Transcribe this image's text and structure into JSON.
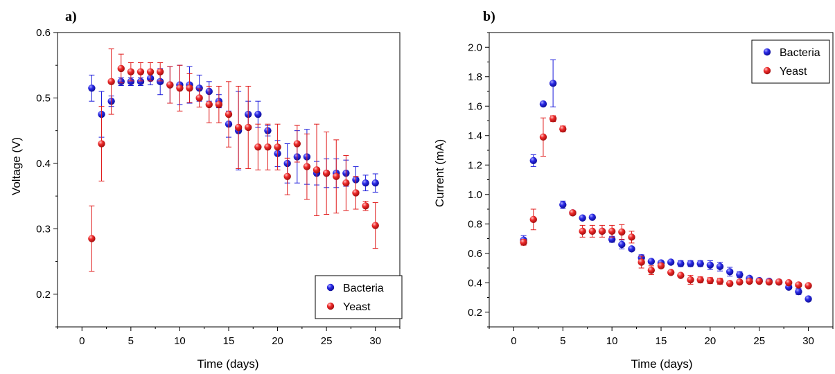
{
  "chart_data": [
    {
      "panel_label": "a)",
      "type": "scatter",
      "xlabel": "Time (days)",
      "ylabel": "Voltage (V)",
      "xlim": [
        -2.5,
        32.5
      ],
      "ylim": [
        0.15,
        0.6
      ],
      "xticks": [
        0,
        5,
        10,
        15,
        20,
        25,
        30
      ],
      "yticks": [
        0.2,
        0.3,
        0.4,
        0.5,
        0.6
      ],
      "ytick_decimals": 1,
      "grid": false,
      "legend_position": "bottom-right",
      "series": [
        {
          "name": "Bacteria",
          "color": "#1a1adb",
          "x": [
            1,
            2,
            3,
            4,
            5,
            6,
            7,
            8,
            9,
            10,
            11,
            12,
            13,
            14,
            15,
            16,
            17,
            18,
            19,
            20,
            21,
            22,
            23,
            24,
            25,
            26,
            27,
            28,
            29,
            30
          ],
          "y": [
            0.515,
            0.475,
            0.495,
            0.525,
            0.525,
            0.525,
            0.53,
            0.525,
            0.52,
            0.52,
            0.52,
            0.515,
            0.51,
            0.495,
            0.46,
            0.45,
            0.475,
            0.475,
            0.45,
            0.415,
            0.4,
            0.41,
            0.41,
            0.385,
            0.385,
            0.385,
            0.385,
            0.375,
            0.37,
            0.37
          ],
          "err": [
            0.02,
            0.035,
            0.008,
            0.006,
            0.006,
            0.006,
            0.01,
            0.02,
            0.028,
            0.03,
            0.028,
            0.02,
            0.015,
            0.01,
            0.02,
            0.06,
            0.02,
            0.02,
            0.008,
            0.02,
            0.03,
            0.04,
            0.042,
            0.018,
            0.022,
            0.022,
            0.02,
            0.02,
            0.012,
            0.014
          ]
        },
        {
          "name": "Yeast",
          "color": "#e01b1b",
          "x": [
            1,
            2,
            3,
            4,
            5,
            6,
            7,
            8,
            9,
            10,
            11,
            12,
            13,
            14,
            15,
            16,
            17,
            18,
            19,
            20,
            21,
            22,
            23,
            24,
            25,
            26,
            27,
            28,
            29,
            30
          ],
          "y": [
            0.285,
            0.43,
            0.525,
            0.545,
            0.54,
            0.54,
            0.54,
            0.54,
            0.52,
            0.515,
            0.515,
            0.5,
            0.49,
            0.49,
            0.475,
            0.455,
            0.455,
            0.425,
            0.425,
            0.425,
            0.38,
            0.43,
            0.395,
            0.39,
            0.385,
            0.38,
            0.37,
            0.355,
            0.335,
            0.305
          ],
          "err": [
            0.05,
            0.057,
            0.05,
            0.022,
            0.014,
            0.014,
            0.014,
            0.014,
            0.028,
            0.035,
            0.022,
            0.014,
            0.028,
            0.028,
            0.05,
            0.063,
            0.063,
            0.035,
            0.035,
            0.035,
            0.028,
            0.028,
            0.05,
            0.07,
            0.063,
            0.056,
            0.042,
            0.025,
            0.007,
            0.035
          ]
        }
      ]
    },
    {
      "panel_label": "b)",
      "type": "scatter",
      "xlabel": "Time (days)",
      "ylabel": "Current (mA)",
      "xlim": [
        -2.5,
        32.5
      ],
      "ylim": [
        0.1,
        2.1
      ],
      "xticks": [
        0,
        5,
        10,
        15,
        20,
        25,
        30
      ],
      "yticks": [
        0.2,
        0.4,
        0.6,
        0.8,
        1.0,
        1.2,
        1.4,
        1.6,
        1.8,
        2.0
      ],
      "ytick_decimals": 1,
      "grid": false,
      "legend_position": "top-right",
      "series": [
        {
          "name": "Bacteria",
          "color": "#1a1adb",
          "x": [
            1,
            2,
            3,
            4,
            5,
            6,
            7,
            8,
            9,
            10,
            11,
            12,
            13,
            14,
            15,
            16,
            17,
            18,
            19,
            20,
            21,
            22,
            23,
            24,
            25,
            26,
            27,
            28,
            29,
            30
          ],
          "y": [
            0.69,
            1.23,
            1.615,
            1.755,
            0.93,
            0.875,
            0.84,
            0.845,
            0.75,
            0.695,
            0.66,
            0.63,
            0.57,
            0.545,
            0.535,
            0.54,
            0.53,
            0.53,
            0.53,
            0.52,
            0.51,
            0.475,
            0.455,
            0.43,
            0.415,
            0.41,
            0.405,
            0.37,
            0.34,
            0.29
          ],
          "err": [
            0.03,
            0.04,
            0.01,
            0.16,
            0.025,
            0.01,
            0.01,
            0.01,
            0.01,
            0.02,
            0.03,
            0.01,
            0.02,
            0.01,
            0.01,
            0.01,
            0.02,
            0.02,
            0.02,
            0.03,
            0.03,
            0.03,
            0.02,
            0.01,
            0.01,
            0.01,
            0.01,
            0.01,
            0.02,
            0.015
          ]
        },
        {
          "name": "Yeast",
          "color": "#e01b1b",
          "x": [
            1,
            2,
            3,
            4,
            5,
            6,
            7,
            8,
            9,
            10,
            11,
            12,
            13,
            14,
            15,
            16,
            17,
            18,
            19,
            20,
            21,
            22,
            23,
            24,
            25,
            26,
            27,
            28,
            29,
            30
          ],
          "y": [
            0.675,
            0.83,
            1.39,
            1.515,
            1.445,
            0.875,
            0.75,
            0.75,
            0.75,
            0.75,
            0.745,
            0.71,
            0.54,
            0.485,
            0.515,
            0.47,
            0.45,
            0.42,
            0.42,
            0.415,
            0.41,
            0.395,
            0.405,
            0.41,
            0.41,
            0.405,
            0.405,
            0.4,
            0.385,
            0.38
          ],
          "err": [
            0.02,
            0.07,
            0.13,
            0.02,
            0.02,
            0.01,
            0.04,
            0.04,
            0.04,
            0.04,
            0.05,
            0.04,
            0.04,
            0.03,
            0.01,
            0.01,
            0.01,
            0.03,
            0.02,
            0.02,
            0.02,
            0.01,
            0.01,
            0.01,
            0.01,
            0.01,
            0.01,
            0.01,
            0.01,
            0.01
          ]
        }
      ]
    }
  ]
}
